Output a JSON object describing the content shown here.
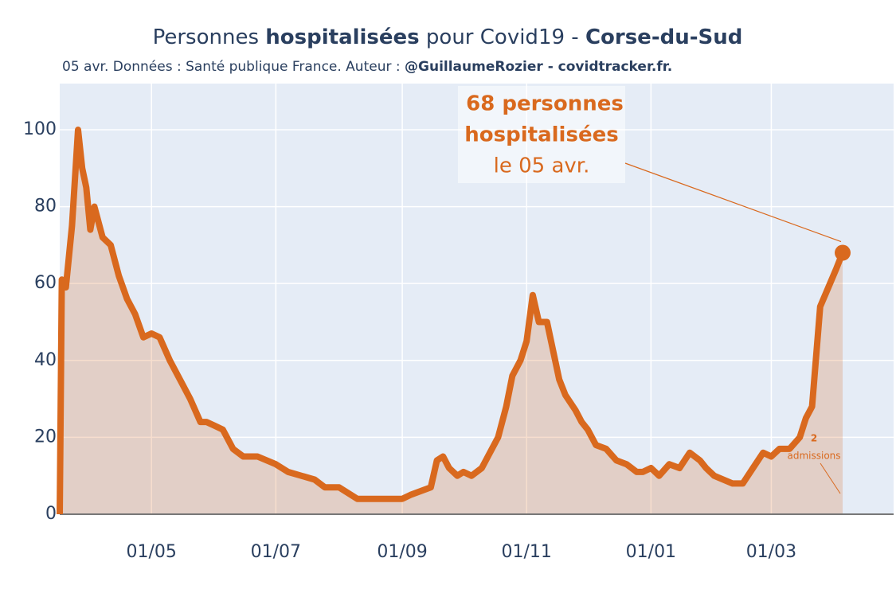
{
  "chart_data": {
    "type": "line",
    "title": [
      "Personnes ",
      "hospitalisées",
      " pour Covid19 - ",
      "Corse-du-Sud"
    ],
    "subtitle": [
      "05 avr. Données : Santé publique France. Auteur : ",
      "@GuillaumeRozier - covidtracker.fr."
    ],
    "annotation": [
      "68 personnes",
      "hospitalisées",
      "le 05 avr."
    ],
    "annotation_small": [
      "2",
      "admissions"
    ],
    "color": "#d9691e",
    "fill": "rgba(217,105,30,0.22)",
    "background": "#e5ecf6",
    "grid": true,
    "xlim": [
      "17/03",
      "30/04"
    ],
    "xticks": [
      "01/05",
      "01/07",
      "01/09",
      "01/11",
      "01/01",
      "01/03"
    ],
    "ylim": [
      0,
      112
    ],
    "yticks": [
      0,
      20,
      40,
      60,
      80,
      100
    ],
    "categories": [
      "17/03",
      "18/03",
      "20/03",
      "23/03",
      "26/03",
      "28/03",
      "30/03",
      "01/04",
      "03/04",
      "07/04",
      "11/04",
      "15/04",
      "19/04",
      "23/04",
      "27/04",
      "01/05",
      "05/05",
      "10/05",
      "15/05",
      "20/05",
      "25/05",
      "28/05",
      "01/06",
      "05/06",
      "10/06",
      "15/06",
      "22/06",
      "01/07",
      "07/07",
      "20/07",
      "25/07",
      "01/08",
      "10/08",
      "01/09",
      "05/09",
      "10/09",
      "15/09",
      "18/09",
      "21/09",
      "24/09",
      "28/09",
      "01/10",
      "05/10",
      "10/10",
      "15/10",
      "18/10",
      "22/10",
      "25/10",
      "29/10",
      "01/11",
      "04/11",
      "07/11",
      "11/11",
      "13/11",
      "17/11",
      "20/11",
      "25/11",
      "28/11",
      "01/12",
      "05/12",
      "10/12",
      "15/12",
      "20/12",
      "25/12",
      "28/12",
      "01/01",
      "05/01",
      "10/01",
      "15/01",
      "20/01",
      "25/01",
      "28/01",
      "01/02",
      "10/02",
      "15/02",
      "20/02",
      "25/02",
      "01/03",
      "05/03",
      "10/03",
      "15/03",
      "18/03",
      "21/03",
      "25/03",
      "29/03",
      "02/04",
      "05/04"
    ],
    "values": [
      0,
      61,
      59,
      75,
      100,
      90,
      85,
      74,
      80,
      72,
      70,
      62,
      56,
      52,
      46,
      47,
      46,
      40,
      35,
      30,
      24,
      24,
      23,
      22,
      17,
      15,
      15,
      13,
      11,
      9,
      7,
      7,
      4,
      4,
      5,
      6,
      7,
      14,
      15,
      12,
      10,
      11,
      10,
      12,
      17,
      20,
      28,
      36,
      40,
      45,
      57,
      50,
      50,
      45,
      35,
      31,
      27,
      24,
      22,
      18,
      17,
      14,
      13,
      11,
      11,
      12,
      10,
      13,
      12,
      16,
      14,
      12,
      10,
      8,
      8,
      12,
      16,
      15,
      17,
      17,
      20,
      25,
      28,
      54,
      59,
      64,
      68
    ]
  }
}
